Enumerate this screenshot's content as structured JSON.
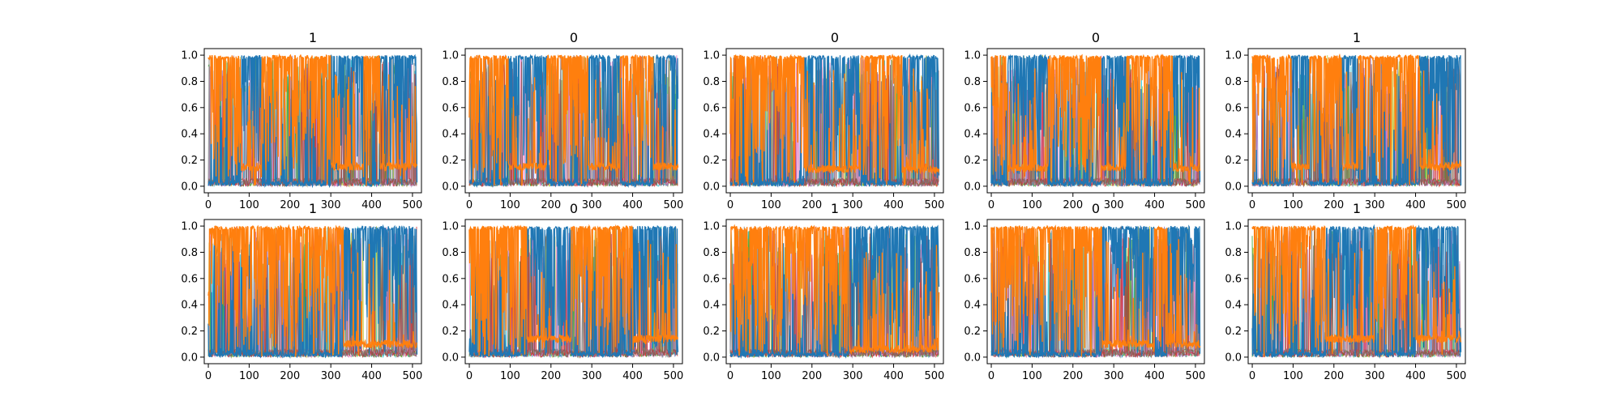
{
  "chart_data": [
    {
      "type": "line",
      "title": "1",
      "xlim": [
        -10,
        522
      ],
      "ylim": [
        -0.05,
        1.05
      ],
      "xticks": [
        0,
        100,
        200,
        300,
        400,
        500
      ],
      "yticks": [
        0.0,
        0.2,
        0.4,
        0.6,
        0.8,
        1.0
      ],
      "ytick_labels": [
        "0.0",
        "0.2",
        "0.4",
        "0.6",
        "0.8",
        "1.0"
      ],
      "series": [
        {
          "color": "#1f77b4",
          "high_regions": [
            [
              80,
              130
            ],
            [
              300,
              380
            ],
            [
              420,
              510
            ]
          ]
        },
        {
          "color": "#ff7f0e",
          "high_regions": [
            [
              0,
              80
            ],
            [
              130,
              300
            ],
            [
              380,
              420
            ]
          ],
          "low_level": 0.15
        }
      ]
    },
    {
      "type": "line",
      "title": "0",
      "xlim": [
        -10,
        522
      ],
      "ylim": [
        -0.05,
        1.05
      ],
      "xticks": [
        0,
        100,
        200,
        300,
        400,
        500
      ],
      "yticks": [
        0.0,
        0.2,
        0.4,
        0.6,
        0.8,
        1.0
      ],
      "ytick_labels": [
        "0.0",
        "0.2",
        "0.4",
        "0.6",
        "0.8",
        "1.0"
      ],
      "series": [
        {
          "color": "#1f77b4",
          "high_regions": [
            [
              95,
              190
            ],
            [
              290,
              370
            ],
            [
              450,
              510
            ]
          ]
        },
        {
          "color": "#ff7f0e",
          "high_regions": [
            [
              0,
              95
            ],
            [
              190,
              290
            ],
            [
              370,
              450
            ]
          ],
          "low_level": 0.15
        }
      ]
    },
    {
      "type": "line",
      "title": "0",
      "xlim": [
        -10,
        522
      ],
      "ylim": [
        -0.05,
        1.05
      ],
      "xticks": [
        0,
        100,
        200,
        300,
        400,
        500
      ],
      "yticks": [
        0.0,
        0.2,
        0.4,
        0.6,
        0.8,
        1.0
      ],
      "ytick_labels": [
        "0.0",
        "0.2",
        "0.4",
        "0.6",
        "0.8",
        "1.0"
      ],
      "series": [
        {
          "color": "#1f77b4",
          "high_regions": [
            [
              180,
              320
            ],
            [
              420,
              510
            ]
          ]
        },
        {
          "color": "#ff7f0e",
          "high_regions": [
            [
              0,
              180
            ],
            [
              320,
              420
            ]
          ],
          "low_level": 0.13
        }
      ]
    },
    {
      "type": "line",
      "title": "0",
      "xlim": [
        -10,
        522
      ],
      "ylim": [
        -0.05,
        1.05
      ],
      "xticks": [
        0,
        100,
        200,
        300,
        400,
        500
      ],
      "yticks": [
        0.0,
        0.2,
        0.4,
        0.6,
        0.8,
        1.0
      ],
      "ytick_labels": [
        "0.0",
        "0.2",
        "0.4",
        "0.6",
        "0.8",
        "1.0"
      ],
      "series": [
        {
          "color": "#1f77b4",
          "high_regions": [
            [
              40,
              140
            ],
            [
              270,
              330
            ],
            [
              445,
              510
            ]
          ]
        },
        {
          "color": "#ff7f0e",
          "high_regions": [
            [
              0,
              40
            ],
            [
              140,
              270
            ],
            [
              330,
              445
            ]
          ],
          "low_level": 0.14
        }
      ]
    },
    {
      "type": "line",
      "title": "1",
      "xlim": [
        -10,
        522
      ],
      "ylim": [
        -0.05,
        1.05
      ],
      "xticks": [
        0,
        100,
        200,
        300,
        400,
        500
      ],
      "yticks": [
        0.0,
        0.2,
        0.4,
        0.6,
        0.8,
        1.0
      ],
      "ytick_labels": [
        "0.0",
        "0.2",
        "0.4",
        "0.6",
        "0.8",
        "1.0"
      ],
      "series": [
        {
          "color": "#1f77b4",
          "high_regions": [
            [
              95,
              140
            ],
            [
              220,
              260
            ],
            [
              410,
              510
            ]
          ]
        },
        {
          "color": "#ff7f0e",
          "high_regions": [
            [
              0,
              95
            ],
            [
              140,
              220
            ],
            [
              260,
              410
            ]
          ],
          "low_level": 0.15
        }
      ]
    },
    {
      "type": "line",
      "title": "1",
      "xlim": [
        -10,
        522
      ],
      "ylim": [
        -0.05,
        1.05
      ],
      "xticks": [
        0,
        100,
        200,
        300,
        400,
        500
      ],
      "yticks": [
        0.0,
        0.2,
        0.4,
        0.6,
        0.8,
        1.0
      ],
      "ytick_labels": [
        "0.0",
        "0.2",
        "0.4",
        "0.6",
        "0.8",
        "1.0"
      ],
      "series": [
        {
          "color": "#1f77b4",
          "high_regions": [
            [
              330,
              510
            ]
          ]
        },
        {
          "color": "#ff7f0e",
          "high_regions": [
            [
              0,
              330
            ]
          ],
          "low_level": 0.1
        }
      ]
    },
    {
      "type": "line",
      "title": "0",
      "xlim": [
        -10,
        522
      ],
      "ylim": [
        -0.05,
        1.05
      ],
      "xticks": [
        0,
        100,
        200,
        300,
        400,
        500
      ],
      "yticks": [
        0.0,
        0.2,
        0.4,
        0.6,
        0.8,
        1.0
      ],
      "ytick_labels": [
        "0.0",
        "0.2",
        "0.4",
        "0.6",
        "0.8",
        "1.0"
      ],
      "series": [
        {
          "color": "#1f77b4",
          "high_regions": [
            [
              140,
              250
            ],
            [
              400,
              510
            ]
          ]
        },
        {
          "color": "#ff7f0e",
          "high_regions": [
            [
              0,
              140
            ],
            [
              250,
              400
            ]
          ],
          "low_level": 0.14
        }
      ]
    },
    {
      "type": "line",
      "title": "1",
      "xlim": [
        -10,
        522
      ],
      "ylim": [
        -0.05,
        1.05
      ],
      "xticks": [
        0,
        100,
        200,
        300,
        400,
        500
      ],
      "yticks": [
        0.0,
        0.2,
        0.4,
        0.6,
        0.8,
        1.0
      ],
      "ytick_labels": [
        "0.0",
        "0.2",
        "0.4",
        "0.6",
        "0.8",
        "1.0"
      ],
      "series": [
        {
          "color": "#1f77b4",
          "high_regions": [
            [
              290,
              510
            ]
          ]
        },
        {
          "color": "#ff7f0e",
          "high_regions": [
            [
              0,
              290
            ]
          ],
          "low_level": 0.06
        }
      ]
    },
    {
      "type": "line",
      "title": "0",
      "xlim": [
        -10,
        522
      ],
      "ylim": [
        -0.05,
        1.05
      ],
      "xticks": [
        0,
        100,
        200,
        300,
        400,
        500
      ],
      "yticks": [
        0.0,
        0.2,
        0.4,
        0.6,
        0.8,
        1.0
      ],
      "ytick_labels": [
        "0.0",
        "0.2",
        "0.4",
        "0.6",
        "0.8",
        "1.0"
      ],
      "series": [
        {
          "color": "#1f77b4",
          "high_regions": [
            [
              270,
              400
            ],
            [
              430,
              510
            ]
          ]
        },
        {
          "color": "#ff7f0e",
          "high_regions": [
            [
              0,
              270
            ],
            [
              400,
              430
            ]
          ],
          "low_level": 0.1
        }
      ]
    },
    {
      "type": "line",
      "title": "1",
      "xlim": [
        -10,
        522
      ],
      "ylim": [
        -0.05,
        1.05
      ],
      "xticks": [
        0,
        100,
        200,
        300,
        400,
        500
      ],
      "yticks": [
        0.0,
        0.2,
        0.4,
        0.6,
        0.8,
        1.0
      ],
      "ytick_labels": [
        "0.0",
        "0.2",
        "0.4",
        "0.6",
        "0.8",
        "1.0"
      ],
      "series": [
        {
          "color": "#1f77b4",
          "high_regions": [
            [
              180,
              300
            ],
            [
              400,
              510
            ]
          ]
        },
        {
          "color": "#ff7f0e",
          "high_regions": [
            [
              0,
              180
            ],
            [
              300,
              400
            ]
          ],
          "low_level": 0.14
        }
      ]
    }
  ],
  "noise_colors": [
    "#17becf",
    "#bcbd22",
    "#2ca02c",
    "#9467bd",
    "#e377c2",
    "#d62728",
    "#7f7f7f",
    "#8c564b"
  ]
}
